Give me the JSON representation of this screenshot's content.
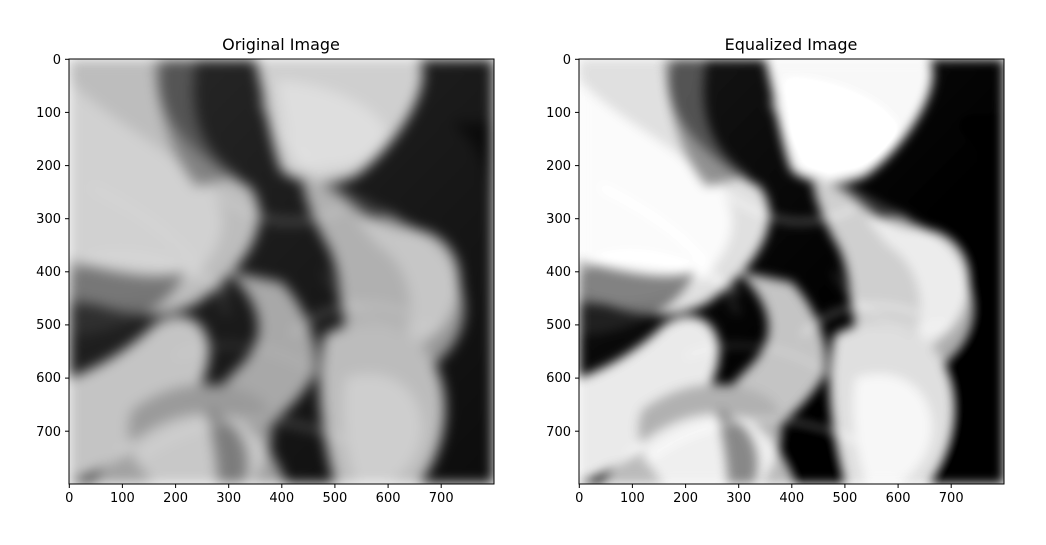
{
  "figure": {
    "panels": [
      {
        "title": "Original Image",
        "x_ticks": [
          "0",
          "100",
          "200",
          "300",
          "400",
          "500",
          "600",
          "700"
        ],
        "y_ticks": [
          "0",
          "100",
          "200",
          "300",
          "400",
          "500",
          "600",
          "700"
        ],
        "x_range": [
          0,
          800
        ],
        "y_range": [
          0,
          800
        ],
        "image": "grayscale abstract flowing fabric / smoke waves"
      },
      {
        "title": "Equalized Image",
        "x_ticks": [
          "0",
          "100",
          "200",
          "300",
          "400",
          "500",
          "600",
          "700"
        ],
        "y_ticks": [
          "0",
          "100",
          "200",
          "300",
          "400",
          "500",
          "600",
          "700"
        ],
        "x_range": [
          0,
          800
        ],
        "y_range": [
          0,
          800
        ],
        "image": "same image after histogram equalization (higher contrast)"
      }
    ]
  }
}
